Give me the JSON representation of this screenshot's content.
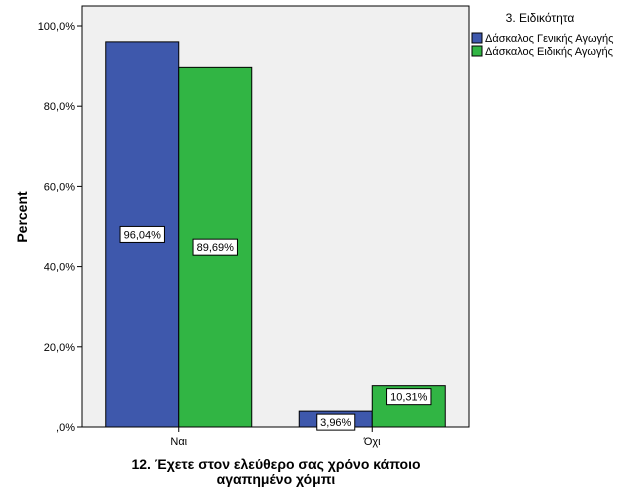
{
  "chart_data": {
    "type": "bar",
    "categories": [
      "Ναι",
      "Όχι"
    ],
    "series": [
      {
        "name": "Δάσκαλος Γενικής Αγωγής",
        "values": [
          96.04,
          3.96
        ],
        "labels": [
          "96,04%",
          "3,96%"
        ],
        "color": "#3e58ac"
      },
      {
        "name": "Δάσκαλος Ειδικής Αγωγής",
        "values": [
          89.69,
          10.31
        ],
        "labels": [
          "89,69%",
          "10,31%"
        ],
        "color": "#31b544"
      }
    ],
    "xlabel_lines": [
      "12. Έχετε στον ελεύθερο σας χρόνο κάποιο",
      "αγαπημένο χόμπι"
    ],
    "ylabel": "Percent",
    "ylim": [
      0,
      100
    ],
    "yticks": [
      0,
      20,
      40,
      60,
      80,
      100
    ],
    "ytick_labels": [
      ",0%",
      "20,0%",
      "40,0%",
      "60,0%",
      "80,0%",
      "100,0%"
    ],
    "legend": {
      "title": "3. Ειδικότητα",
      "position": "top-right"
    },
    "plot_background": "#f0f0f0",
    "grid": false
  }
}
